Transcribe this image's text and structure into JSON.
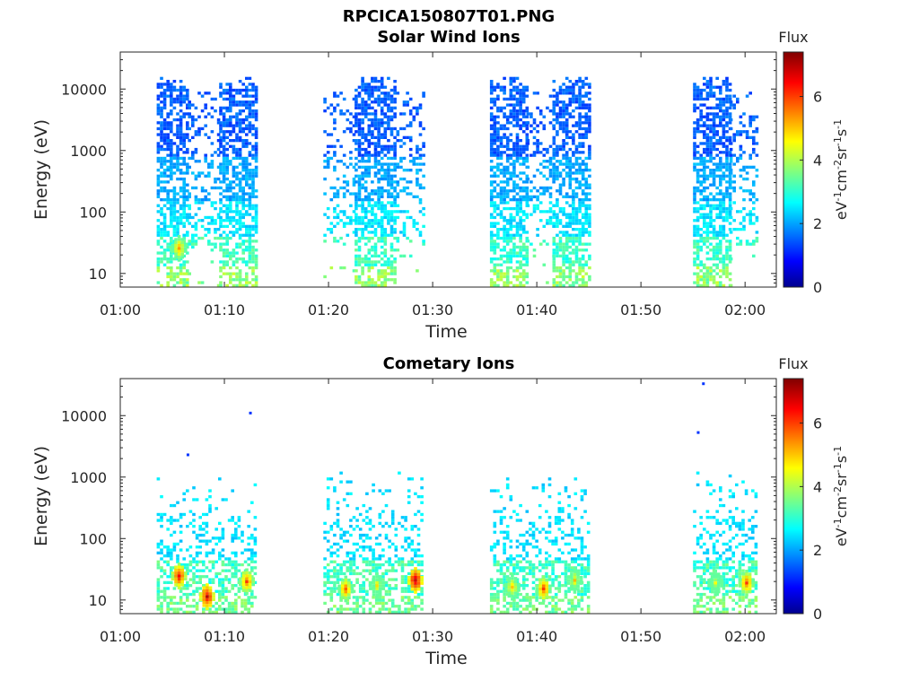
{
  "figure": {
    "filename": "RPCICA150807T01.PNG"
  },
  "panel_titles": [
    "Solar Wind Ions",
    "Cometary Ions"
  ],
  "axis_labels": {
    "x": "Time",
    "y": "Energy (eV)",
    "colorbar_title": "Flux",
    "colorbar_units": "eV-1cm-2sr-1s-1"
  },
  "chart_data": [
    {
      "type": "heatmap",
      "title": "Solar Wind Ions",
      "xlabel": "Time",
      "ylabel": "Energy (eV)",
      "y_scale": "log",
      "x_ticks": [
        "01:00",
        "01:10",
        "01:20",
        "01:30",
        "01:40",
        "01:50",
        "02:00"
      ],
      "y_ticks": [
        "10",
        "100",
        "1000",
        "10000"
      ],
      "x_range": [
        "01:00",
        "02:03"
      ],
      "y_range": [
        6,
        40000
      ],
      "colorbar": {
        "label": "Flux",
        "units": "eV-1cm-2sr-1s-1",
        "range": [
          0,
          7.4
        ],
        "ticks": [
          "0",
          "2",
          "4",
          "6"
        ],
        "colormap": "jet"
      },
      "bursts": [
        {
          "start": "01:03.5",
          "end": "01:06.5",
          "max_energy_eV": 15000
        },
        {
          "start": "01:06.5",
          "end": "01:09.5",
          "max_energy_eV": 8000,
          "sparse": true
        },
        {
          "start": "01:09.5",
          "end": "01:13.0",
          "max_energy_eV": 15000
        },
        {
          "start": "01:19.5",
          "end": "01:22.5",
          "max_energy_eV": 8000,
          "sparse": true
        },
        {
          "start": "01:22.5",
          "end": "01:26.5",
          "max_energy_eV": 15000
        },
        {
          "start": "01:26.5",
          "end": "01:29.0",
          "max_energy_eV": 8000,
          "sparse": true
        },
        {
          "start": "01:35.5",
          "end": "01:39.0",
          "max_energy_eV": 15000
        },
        {
          "start": "01:39.0",
          "end": "01:41.5",
          "max_energy_eV": 8000,
          "sparse": true
        },
        {
          "start": "01:41.5",
          "end": "01:45.0",
          "max_energy_eV": 15000
        },
        {
          "start": "01:55.0",
          "end": "01:58.5",
          "max_energy_eV": 15000
        },
        {
          "start": "01:58.5",
          "end": "02:01.0",
          "max_energy_eV": 8000,
          "sparse": true
        }
      ],
      "hotspots": [
        {
          "time": "01:05.5",
          "energy_eV": 27,
          "flux": 5.5
        }
      ]
    },
    {
      "type": "heatmap",
      "title": "Cometary Ions",
      "xlabel": "Time",
      "ylabel": "Energy (eV)",
      "y_scale": "log",
      "x_ticks": [
        "01:00",
        "01:10",
        "01:20",
        "01:30",
        "01:40",
        "01:50",
        "02:00"
      ],
      "y_ticks": [
        "10",
        "100",
        "1000",
        "10000"
      ],
      "x_range": [
        "01:00",
        "02:03"
      ],
      "y_range": [
        6,
        40000
      ],
      "colorbar": {
        "label": "Flux",
        "units": "eV-1cm-2sr-1s-1",
        "range": [
          0,
          7.4
        ],
        "ticks": [
          "0",
          "2",
          "4",
          "6"
        ],
        "colormap": "jet"
      },
      "bursts": [
        {
          "start": "01:03.5",
          "end": "01:13.0",
          "max_energy_eV": 900
        },
        {
          "start": "01:19.5",
          "end": "01:29.0",
          "max_energy_eV": 1200
        },
        {
          "start": "01:35.5",
          "end": "01:45.0",
          "max_energy_eV": 1000
        },
        {
          "start": "01:55.0",
          "end": "02:01.0",
          "max_energy_eV": 1200
        }
      ],
      "hotspots": [
        {
          "time": "01:05.5",
          "energy_eV": 26,
          "flux": 6.5
        },
        {
          "time": "01:08.2",
          "energy_eV": 12,
          "flux": 6.8
        },
        {
          "time": "01:12.0",
          "energy_eV": 21,
          "flux": 6.0
        },
        {
          "time": "01:21.5",
          "energy_eV": 16,
          "flux": 5.8
        },
        {
          "time": "01:24.5",
          "energy_eV": 18,
          "flux": 4.8
        },
        {
          "time": "01:28.2",
          "energy_eV": 22,
          "flux": 7.0
        },
        {
          "time": "01:37.5",
          "energy_eV": 17,
          "flux": 5.2
        },
        {
          "time": "01:40.5",
          "energy_eV": 16,
          "flux": 6.0
        },
        {
          "time": "01:43.5",
          "energy_eV": 22,
          "flux": 5.0
        },
        {
          "time": "01:57.0",
          "energy_eV": 20,
          "flux": 4.5
        },
        {
          "time": "02:00.0",
          "energy_eV": 20,
          "flux": 6.0
        }
      ],
      "isolated_points": [
        {
          "time": "01:06.5",
          "energy_eV": 2300
        },
        {
          "time": "01:12.5",
          "energy_eV": 11000
        },
        {
          "time": "01:55.5",
          "energy_eV": 5300
        },
        {
          "time": "01:56.0",
          "energy_eV": 33000
        }
      ]
    }
  ]
}
